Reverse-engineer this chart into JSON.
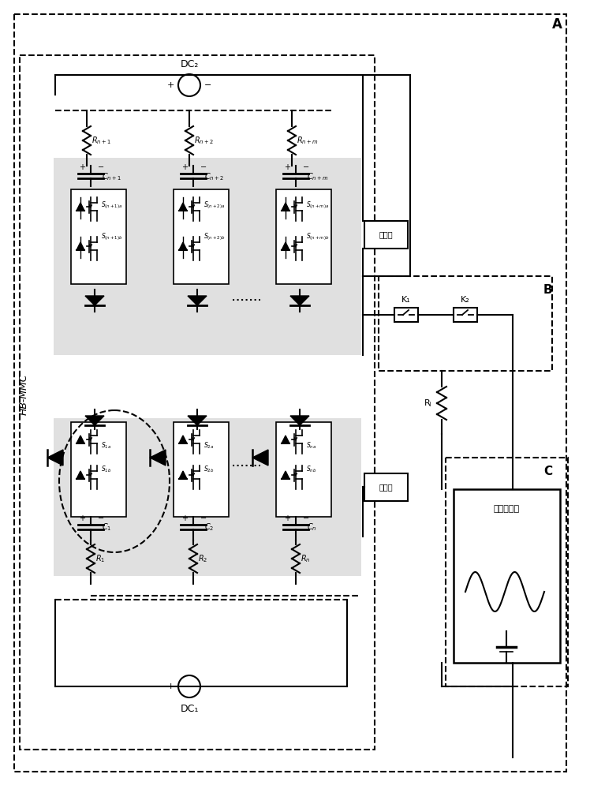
{
  "bg_color": "#ffffff",
  "line_color": "#000000",
  "gray_fill": "#e8e8e8",
  "title": "",
  "label_A": "A",
  "label_B": "B",
  "label_C": "C",
  "label_HBMMC": "HB-MMC",
  "label_DC2": "DC₂",
  "label_DC1": "DC₁",
  "label_RL": "Rⱼ",
  "label_neg_bridge": "负桥车",
  "label_pos_bridge": "正桥车",
  "label_sine_gen": "正弦发生器",
  "label_K1": "K₁",
  "label_K2": "K₂",
  "resistors_top": [
    "R_{n+1}",
    "R_{n+2}",
    "R_{n+m}"
  ],
  "resistors_bot": [
    "R_1",
    "R_2",
    "R_n"
  ],
  "caps_top": [
    "C_{n+1}",
    "C_{n+2}",
    "C_{n+m}"
  ],
  "caps_bot": [
    "C_1",
    "C_2",
    "C_n"
  ],
  "switches_top_a": [
    "S_{(n+1)a}",
    "S_{(n+2)a}",
    "S_{(n+m)a}"
  ],
  "switches_top_b": [
    "S_{(n+1)b}",
    "S_{(n+2)b}",
    "S_{(n+m)b}"
  ],
  "switches_bot_a": [
    "S_{1a}",
    "S_{2a}",
    "S_{na}"
  ],
  "switches_bot_b": [
    "S_{1b}",
    "S_{2b}",
    "S_{nb}"
  ]
}
